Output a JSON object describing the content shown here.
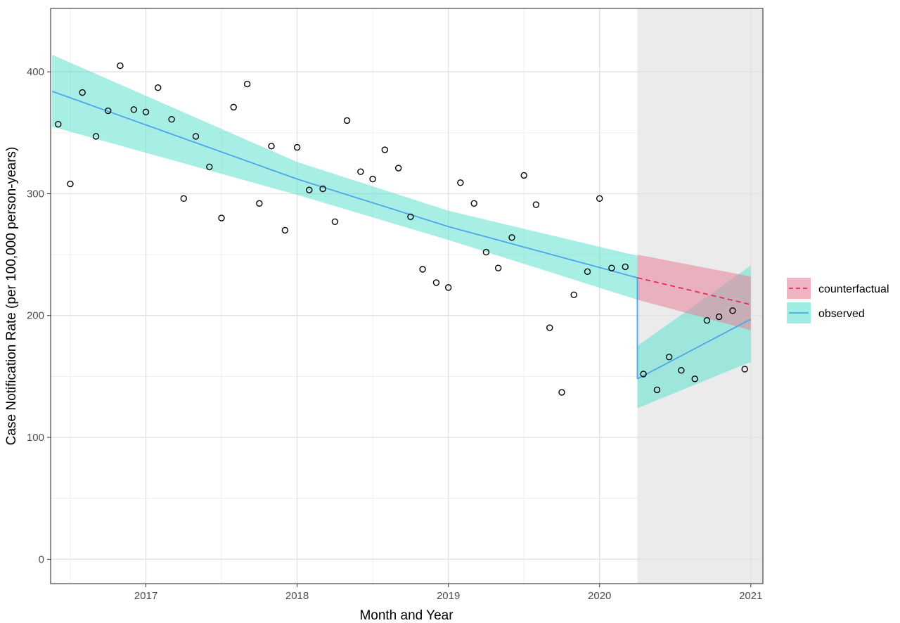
{
  "chart_data": {
    "type": "scatter",
    "title": "",
    "xlabel": "Month and Year",
    "ylabel": "Case Notification Rate (per 100,000 person-years)",
    "xlim": [
      2016.37,
      2021.08
    ],
    "ylim": [
      -20,
      452
    ],
    "x_ticks": [
      {
        "value": 2017,
        "label": "2017"
      },
      {
        "value": 2018,
        "label": "2018"
      },
      {
        "value": 2019,
        "label": "2019"
      },
      {
        "value": 2020,
        "label": "2020"
      },
      {
        "value": 2021,
        "label": "2021"
      }
    ],
    "y_ticks": [
      {
        "value": 0,
        "label": "0"
      },
      {
        "value": 100,
        "label": "100"
      },
      {
        "value": 200,
        "label": "200"
      },
      {
        "value": 300,
        "label": "300"
      },
      {
        "value": 400,
        "label": "400"
      }
    ],
    "grid": true,
    "shaded_region": {
      "x_start": 2020.25,
      "x_end": 2021.08,
      "color": "#ebebeb"
    },
    "points": [
      [
        2016.42,
        357
      ],
      [
        2016.5,
        308
      ],
      [
        2016.58,
        383
      ],
      [
        2016.67,
        347
      ],
      [
        2016.75,
        368
      ],
      [
        2016.83,
        405
      ],
      [
        2016.92,
        369
      ],
      [
        2017.0,
        367
      ],
      [
        2017.08,
        387
      ],
      [
        2017.17,
        361
      ],
      [
        2017.25,
        296
      ],
      [
        2017.33,
        347
      ],
      [
        2017.42,
        322
      ],
      [
        2017.5,
        280
      ],
      [
        2017.58,
        371
      ],
      [
        2017.67,
        390
      ],
      [
        2017.75,
        292
      ],
      [
        2017.83,
        339
      ],
      [
        2017.92,
        270
      ],
      [
        2018.0,
        338
      ],
      [
        2018.08,
        303
      ],
      [
        2018.17,
        304
      ],
      [
        2018.25,
        277
      ],
      [
        2018.33,
        360
      ],
      [
        2018.42,
        318
      ],
      [
        2018.5,
        312
      ],
      [
        2018.58,
        336
      ],
      [
        2018.67,
        321
      ],
      [
        2018.75,
        281
      ],
      [
        2018.83,
        238
      ],
      [
        2018.92,
        227
      ],
      [
        2019.0,
        223
      ],
      [
        2019.08,
        309
      ],
      [
        2019.17,
        292
      ],
      [
        2019.25,
        252
      ],
      [
        2019.33,
        239
      ],
      [
        2019.42,
        264
      ],
      [
        2019.5,
        315
      ],
      [
        2019.58,
        291
      ],
      [
        2019.67,
        190
      ],
      [
        2019.75,
        137
      ],
      [
        2019.83,
        217
      ],
      [
        2019.92,
        236
      ],
      [
        2020.0,
        296
      ],
      [
        2020.08,
        239
      ],
      [
        2020.17,
        240
      ],
      [
        2020.29,
        152
      ],
      [
        2020.38,
        139
      ],
      [
        2020.46,
        166
      ],
      [
        2020.54,
        155
      ],
      [
        2020.63,
        148
      ],
      [
        2020.71,
        196
      ],
      [
        2020.79,
        199
      ],
      [
        2020.88,
        204
      ],
      [
        2020.96,
        156
      ]
    ],
    "series": [
      {
        "name": "observed",
        "color": "#4da6e8",
        "band_color": "#5fe0d0",
        "segments": [
          {
            "x": [
              2016.38,
              2018.0,
              2019.0,
              2020.25
            ],
            "y": [
              384,
              312,
              273,
              231
            ],
            "lower": [
              355,
              299,
              262,
              213
            ],
            "upper": [
              414,
              326,
              286,
              249
            ]
          },
          {
            "x": [
              2020.25,
              2021.0
            ],
            "y": [
              148,
              197
            ],
            "lower": [
              124,
              162
            ],
            "upper": [
              175,
              241
            ]
          }
        ],
        "connector": {
          "x": 2020.25,
          "y": [
            231,
            148
          ]
        }
      },
      {
        "name": "counterfactual",
        "color": "#e8295e",
        "band_color": "#e87f97",
        "dashed": true,
        "segments": [
          {
            "x": [
              2020.25,
              2021.0
            ],
            "y": [
              231,
              209
            ],
            "lower": [
              213,
              188
            ],
            "upper": [
              250,
              232
            ]
          }
        ]
      }
    ],
    "legend": {
      "position": "right",
      "entries": [
        "counterfactual",
        "observed"
      ]
    }
  }
}
